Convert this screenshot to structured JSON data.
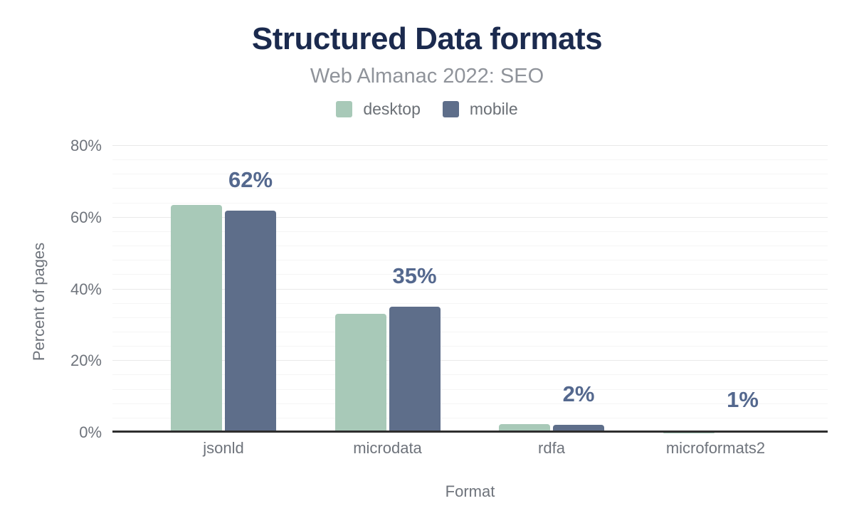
{
  "chart_data": {
    "type": "bar",
    "title": "Structured Data formats",
    "subtitle": "Web Almanac 2022: SEO",
    "categories": [
      "jsonld",
      "microdata",
      "rdfa",
      "microformats2"
    ],
    "series": [
      {
        "name": "desktop",
        "color": "#a8c9b8",
        "values": [
          63.6,
          33.2,
          2.4,
          0.1
        ]
      },
      {
        "name": "mobile",
        "color": "#5e6e8a",
        "values": [
          61.9,
          35.2,
          2.1,
          0.6
        ]
      }
    ],
    "data_labels": {
      "on_series": "mobile",
      "values": [
        "62%",
        "35%",
        "2%",
        "1%"
      ]
    },
    "xlabel": "Format",
    "ylabel": "Percent of pages",
    "ylim": [
      0,
      80
    ],
    "yticks": [
      {
        "value": 80,
        "label": "80%"
      },
      {
        "value": 60,
        "label": "60%"
      },
      {
        "value": 40,
        "label": "40%"
      },
      {
        "value": 20,
        "label": "20%"
      },
      {
        "value": 0,
        "label": "0%"
      }
    ],
    "y_minor_step": 4,
    "grid": true,
    "legend_position": "top",
    "colors": {
      "title_text": "#1b2a4e",
      "subtitle_text": "#8f939a",
      "data_label_text": "#54688e",
      "axis_text": "#6e737b",
      "axis_line": "#2e2e2e",
      "gridline_major": "#e9e9e9",
      "gridline_minor": "#f5f5f5"
    }
  }
}
